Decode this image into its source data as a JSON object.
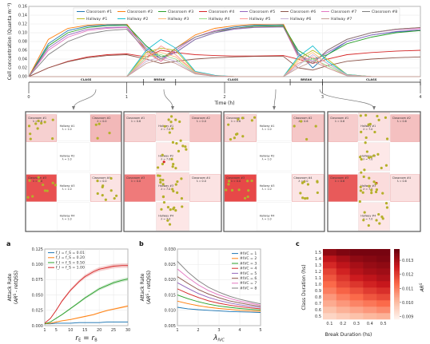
{
  "chart_data": [
    {
      "id": "concentration",
      "type": "line",
      "xlabel": "Time (h)",
      "ylabel": "Cell concentration (Quanta m⁻³)",
      "xlim": [
        0,
        4
      ],
      "ylim": [
        0,
        0.16
      ],
      "xticks": [
        "0",
        "1",
        "2",
        "3",
        "4"
      ],
      "yticks": [
        "0.00",
        "0.02",
        "0.04",
        "0.06",
        "0.08",
        "0.10",
        "0.12",
        "0.14",
        "0.16"
      ],
      "grid": true,
      "legend_position": "top",
      "schedule": [
        {
          "label": "CLASS",
          "start": 0,
          "end": 1.17
        },
        {
          "label": "BREAK",
          "start": 1.17,
          "end": 1.5
        },
        {
          "label": "CLASS",
          "start": 1.5,
          "end": 2.67
        },
        {
          "label": "BREAK",
          "start": 2.67,
          "end": 3.0
        },
        {
          "label": "CLASS",
          "start": 3.0,
          "end": 4.0
        }
      ],
      "series": [
        {
          "name": "Classroom #1",
          "color": "#1f77b4",
          "values": [
            0,
            0.075,
            0.105,
            0.115,
            0.118,
            0.118,
            0.07,
            0.04,
            0.06,
            0.09,
            0.105,
            0.113,
            0.117,
            0.118,
            0.055,
            0.02,
            0.05,
            0.08,
            0.095,
            0.102,
            0.105
          ]
        },
        {
          "name": "Classroom #2",
          "color": "#ff7f0e",
          "values": [
            0,
            0.085,
            0.11,
            0.117,
            0.12,
            0.12,
            0.06,
            0.035,
            0.065,
            0.095,
            0.11,
            0.116,
            0.119,
            0.12,
            0.05,
            0.03,
            0.06,
            0.085,
            0.1,
            0.108,
            0.112
          ]
        },
        {
          "name": "Classroom #3",
          "color": "#2ca02c",
          "values": [
            0,
            0.07,
            0.1,
            0.112,
            0.116,
            0.117,
            0.07,
            0.045,
            0.055,
            0.085,
            0.1,
            0.11,
            0.115,
            0.116,
            0.06,
            0.04,
            0.05,
            0.075,
            0.09,
            0.1,
            0.105
          ]
        },
        {
          "name": "Classroom #4",
          "color": "#d62728",
          "values": [
            0,
            0.02,
            0.035,
            0.045,
            0.05,
            0.052,
            0.045,
            0.06,
            0.055,
            0.05,
            0.048,
            0.047,
            0.047,
            0.048,
            0.04,
            0.03,
            0.04,
            0.05,
            0.055,
            0.058,
            0.06
          ]
        },
        {
          "name": "Classroom #5",
          "color": "#9467bd",
          "values": [
            0,
            0.065,
            0.095,
            0.108,
            0.112,
            0.113,
            0.065,
            0.04,
            0.055,
            0.085,
            0.1,
            0.108,
            0.112,
            0.113,
            0.05,
            0.035,
            0.055,
            0.08,
            0.095,
            0.103,
            0.107
          ]
        },
        {
          "name": "Classroom #6",
          "color": "#8c564b",
          "values": [
            0,
            0.02,
            0.034,
            0.043,
            0.048,
            0.05,
            0.04,
            0.03,
            0.035,
            0.04,
            0.043,
            0.045,
            0.046,
            0.046,
            0.02,
            0.015,
            0.025,
            0.035,
            0.04,
            0.043,
            0.045
          ]
        },
        {
          "name": "Classroom #7",
          "color": "#e377c2",
          "values": [
            0,
            0.06,
            0.09,
            0.105,
            0.11,
            0.112,
            0.055,
            0.035,
            0.06,
            0.09,
            0.105,
            0.11,
            0.113,
            0.114,
            0.045,
            0.03,
            0.06,
            0.085,
            0.1,
            0.107,
            0.11
          ]
        },
        {
          "name": "Classroom #8",
          "color": "#7f7f7f",
          "values": [
            0,
            0.05,
            0.08,
            0.097,
            0.105,
            0.108,
            0.06,
            0.04,
            0.065,
            0.09,
            0.103,
            0.11,
            0.113,
            0.114,
            0.05,
            0.03,
            0.06,
            0.085,
            0.1,
            0.108,
            0.112
          ]
        },
        {
          "name": "Hallway #1",
          "color": "#bcbd22",
          "values": [
            0,
            0,
            0,
            0,
            0,
            0,
            0.055,
            0.065,
            0.06,
            0.01,
            0.002,
            0,
            0,
            0,
            0.04,
            0.06,
            0.04,
            0.005,
            0,
            0,
            0
          ]
        },
        {
          "name": "Hallway #2",
          "color": "#17becf",
          "values": [
            0,
            0,
            0,
            0,
            0,
            0,
            0.06,
            0.085,
            0.065,
            0.012,
            0.003,
            0,
            0,
            0,
            0.045,
            0.07,
            0.035,
            0.005,
            0,
            0,
            0
          ]
        },
        {
          "name": "Hallway #3",
          "color": "#ffbb78",
          "values": [
            0,
            0,
            0,
            0,
            0,
            0,
            0.05,
            0.055,
            0.045,
            0.01,
            0.002,
            0,
            0,
            0,
            0.035,
            0.055,
            0.03,
            0.004,
            0,
            0,
            0
          ]
        },
        {
          "name": "Hallway #4",
          "color": "#98df8a",
          "values": [
            0,
            0,
            0,
            0,
            0,
            0,
            0.045,
            0.05,
            0.04,
            0.008,
            0.002,
            0,
            0,
            0,
            0.03,
            0.04,
            0.025,
            0.003,
            0,
            0,
            0
          ]
        },
        {
          "name": "Hallway #5",
          "color": "#ff9896",
          "values": [
            0,
            0,
            0,
            0,
            0,
            0,
            0.04,
            0.07,
            0.05,
            0.009,
            0.002,
            0,
            0,
            0,
            0.03,
            0.045,
            0.02,
            0.003,
            0,
            0,
            0
          ]
        },
        {
          "name": "Hallway #6",
          "color": "#c5b0d5",
          "values": [
            0,
            0,
            0,
            0,
            0,
            0,
            0.035,
            0.045,
            0.035,
            0.007,
            0.001,
            0,
            0,
            0,
            0.025,
            0.05,
            0.03,
            0.003,
            0,
            0,
            0
          ]
        },
        {
          "name": "Hallway #7",
          "color": "#c49c94",
          "values": [
            0,
            0,
            0,
            0,
            0,
            0,
            0.03,
            0.04,
            0.03,
            0.006,
            0.001,
            0,
            0,
            0,
            0.02,
            0.035,
            0.02,
            0.002,
            0,
            0,
            0
          ]
        }
      ],
      "x": [
        0,
        0.2,
        0.4,
        0.6,
        0.8,
        1.0,
        1.2,
        1.35,
        1.5,
        1.7,
        1.9,
        2.1,
        2.3,
        2.6,
        2.75,
        2.9,
        3.05,
        3.25,
        3.5,
        3.75,
        4.0
      ]
    },
    {
      "id": "snapshots",
      "type": "diagram",
      "panels": [
        {
          "rooms": [
            {
              "name": "Classroom #1",
              "sub": "λ = 0.6"
            },
            {
              "name": "Classroom #2",
              "sub": "λ = 0.0"
            },
            {
              "name": "Classroom #3",
              "sub": "λ = 0.0"
            },
            {
              "name": "Classroom #4",
              "sub": "λ = 0.0"
            },
            {
              "name": "Hallway #1",
              "sub": "λ = 1.0"
            },
            {
              "name": "Hallway #2",
              "sub": "λ = 1.0"
            },
            {
              "name": "Hallway #3",
              "sub": "λ = 1.0"
            },
            {
              "name": "Hallway #4",
              "sub": "λ = 1.0"
            }
          ]
        },
        {
          "rooms": [
            {
              "name": "Classroom #1",
              "sub": "λ = 0.6"
            },
            {
              "name": "Classroom #2",
              "sub": "λ = 0.0"
            },
            {
              "name": "Classroom #3",
              "sub": "λ = 0.0"
            },
            {
              "name": "Classroom #4",
              "sub": "λ = 0.0"
            },
            {
              "name": "Hallway #1",
              "sub": "λ = 7.0"
            },
            {
              "name": "Hallway #2",
              "sub": "λ = 7.0"
            },
            {
              "name": "Hallway #3",
              "sub": "λ = 7.0"
            },
            {
              "name": "Hallway #4",
              "sub": "λ = 7.0"
            }
          ]
        },
        {
          "rooms": [
            {
              "name": "Classroom #1",
              "sub": "λ = 0.6"
            },
            {
              "name": "Classroom #2",
              "sub": "λ = 0.6"
            },
            {
              "name": "Classroom #3",
              "sub": "λ = 0.0"
            },
            {
              "name": "Classroom #4",
              "sub": "λ = 0.0"
            },
            {
              "name": "Hallway #1",
              "sub": "λ = 1.0"
            },
            {
              "name": "Hallway #2",
              "sub": "λ = 1.0"
            },
            {
              "name": "Hallway #3",
              "sub": "λ = 1.0"
            },
            {
              "name": "Hallway #4",
              "sub": "λ = 1.0"
            }
          ]
        },
        {
          "rooms": [
            {
              "name": "Classroom #1",
              "sub": "λ = 0.6"
            },
            {
              "name": "Classroom #2",
              "sub": "λ = 0.6"
            },
            {
              "name": "Classroom #3",
              "sub": "λ = 0.6"
            },
            {
              "name": "Classroom #4",
              "sub": "λ = 0.6"
            },
            {
              "name": "Hallway #1",
              "sub": "λ = 7.0"
            },
            {
              "name": "Hallway #2",
              "sub": "λ = 7.0"
            },
            {
              "name": "Hallway #3",
              "sub": "λ = 7.0"
            },
            {
              "name": "Hallway #4",
              "sub": "λ = 7.0"
            }
          ]
        }
      ]
    },
    {
      "id": "a",
      "type": "line",
      "panel_label": "a",
      "xlabel": "r_E = r_B",
      "ylabel": "Attack Rate (AR^S - retQSS)",
      "xlim": [
        1,
        30
      ],
      "ylim": [
        0,
        0.125
      ],
      "xticks": [
        1,
        5,
        10,
        15,
        20,
        25,
        30
      ],
      "yticks": [
        "0.000",
        "0.025",
        "0.050",
        "0.075",
        "0.100",
        "0.125"
      ],
      "legend_position": "top-left",
      "x": [
        1,
        3,
        5,
        7,
        10,
        13,
        15,
        18,
        20,
        23,
        25,
        28,
        30
      ],
      "series": [
        {
          "name": "f_I = f_S = 0.01",
          "color": "#1f77b4",
          "values": [
            0.003,
            0.003,
            0.004,
            0.004,
            0.004,
            0.005,
            0.005,
            0.005,
            0.005,
            0.006,
            0.006,
            0.006,
            0.006
          ]
        },
        {
          "name": "f_I = f_S = 0.20",
          "color": "#ff7f0e",
          "values": [
            0.003,
            0.004,
            0.006,
            0.008,
            0.01,
            0.013,
            0.015,
            0.018,
            0.021,
            0.025,
            0.027,
            0.03,
            0.032
          ]
        },
        {
          "name": "f_I = f_S = 0.50",
          "color": "#2ca02c",
          "values": [
            0.003,
            0.006,
            0.012,
            0.018,
            0.028,
            0.038,
            0.045,
            0.054,
            0.06,
            0.066,
            0.07,
            0.074,
            0.076
          ]
        },
        {
          "name": "f_I = f_S = 1.00",
          "color": "#d62728",
          "values": [
            0.004,
            0.012,
            0.025,
            0.04,
            0.058,
            0.072,
            0.08,
            0.088,
            0.092,
            0.095,
            0.097,
            0.098,
            0.098
          ]
        }
      ]
    },
    {
      "id": "b",
      "type": "line",
      "panel_label": "b",
      "xlabel": "λ_IVC",
      "ylabel": "Attack Rate (AR^S - retQSS)",
      "xlim": [
        1,
        5
      ],
      "ylim": [
        0.005,
        0.03
      ],
      "xticks": [
        1,
        2,
        3,
        4,
        5
      ],
      "yticks": [
        "0.005",
        "0.010",
        "0.015",
        "0.020",
        "0.025",
        "0.030"
      ],
      "legend_position": "top-right",
      "x": [
        1,
        1.5,
        2,
        2.5,
        3,
        3.5,
        4,
        4.5,
        5
      ],
      "series": [
        {
          "name": "#IVC = 1",
          "color": "#1f77b4",
          "values": [
            0.011,
            0.0105,
            0.0102,
            0.01,
            0.0098,
            0.0096,
            0.0095,
            0.0094,
            0.0093
          ]
        },
        {
          "name": "#IVC = 2",
          "color": "#ff7f0e",
          "values": [
            0.013,
            0.0122,
            0.0115,
            0.011,
            0.0106,
            0.0103,
            0.01,
            0.0098,
            0.0097
          ]
        },
        {
          "name": "#IVC = 3",
          "color": "#2ca02c",
          "values": [
            0.015,
            0.0138,
            0.0128,
            0.012,
            0.0114,
            0.011,
            0.0106,
            0.0103,
            0.0101
          ]
        },
        {
          "name": "#IVC = 4",
          "color": "#d62728",
          "values": [
            0.017,
            0.0155,
            0.0142,
            0.0131,
            0.0123,
            0.0117,
            0.0112,
            0.0108,
            0.0105
          ]
        },
        {
          "name": "#IVC = 5",
          "color": "#9467bd",
          "values": [
            0.019,
            0.0172,
            0.0155,
            0.0142,
            0.0132,
            0.0124,
            0.0118,
            0.0113,
            0.0109
          ]
        },
        {
          "name": "#IVC = 6",
          "color": "#8c564b",
          "values": [
            0.021,
            0.0188,
            0.0168,
            0.0153,
            0.0141,
            0.0131,
            0.0124,
            0.0118,
            0.0113
          ]
        },
        {
          "name": "#IVC = 7",
          "color": "#e377c2",
          "values": [
            0.0235,
            0.0207,
            0.0183,
            0.0164,
            0.015,
            0.0139,
            0.013,
            0.0123,
            0.0117
          ]
        },
        {
          "name": "#IVC = 8",
          "color": "#7f7f7f",
          "values": [
            0.026,
            0.0225,
            0.0197,
            0.0175,
            0.0159,
            0.0146,
            0.0136,
            0.0128,
            0.0121
          ]
        }
      ]
    },
    {
      "id": "c",
      "type": "heatmap",
      "panel_label": "c",
      "xlabel": "Break Duration (hs)",
      "ylabel": "Class Duration (hs)",
      "colorbar_label": "AR^S",
      "x_ticks": [
        "0.1",
        "0.2",
        "0.3",
        "0.4",
        "0.5"
      ],
      "y_ticks": [
        "0.5",
        "0.6",
        "0.7",
        "0.8",
        "0.9",
        "1.0",
        "1.1",
        "1.2",
        "1.3",
        "1.4",
        "1.5"
      ],
      "colorbar_ticks": [
        "0.009",
        "0.010",
        "0.011",
        "0.012",
        "0.013"
      ],
      "vmin": 0.0088,
      "vmax": 0.0138,
      "values": [
        [
          0.0095,
          0.0097,
          0.0099,
          0.0101,
          0.0102
        ],
        [
          0.0099,
          0.0102,
          0.0104,
          0.0106,
          0.0108
        ],
        [
          0.0103,
          0.0106,
          0.0109,
          0.0111,
          0.0113
        ],
        [
          0.0106,
          0.011,
          0.0113,
          0.0116,
          0.0118
        ],
        [
          0.011,
          0.0114,
          0.0117,
          0.012,
          0.0122
        ],
        [
          0.0113,
          0.0118,
          0.0121,
          0.0124,
          0.0126
        ],
        [
          0.0116,
          0.0121,
          0.0125,
          0.0127,
          0.0129
        ],
        [
          0.0119,
          0.0124,
          0.0128,
          0.013,
          0.0131
        ],
        [
          0.0123,
          0.0127,
          0.013,
          0.0132,
          0.0133
        ],
        [
          0.0127,
          0.013,
          0.0133,
          0.0134,
          0.0135
        ],
        [
          0.0133,
          0.0135,
          0.0136,
          0.0136,
          0.0136
        ]
      ]
    }
  ]
}
